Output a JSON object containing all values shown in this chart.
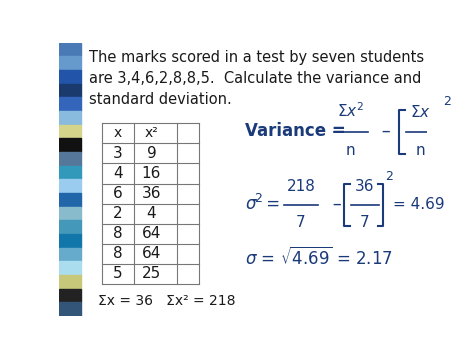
{
  "bg_color": "#ffffff",
  "sidebar_colors": [
    "#4a7ab5",
    "#6699cc",
    "#2255aa",
    "#1a3a6e",
    "#3366bb",
    "#88bbdd",
    "#d4d48a",
    "#111111",
    "#557799",
    "#3399bb",
    "#99ccee",
    "#2266aa",
    "#88bbcc",
    "#4499bb",
    "#1177aa",
    "#66aacc",
    "#aaddee",
    "#c8c87a",
    "#222222",
    "#335577"
  ],
  "title_text": "The marks scored in a test by seven students\nare 3,4,6,2,8,8,5.  Calculate the variance and\nstandard deviation.",
  "title_fontsize": 10.5,
  "table_x_vals": [
    "x",
    "3",
    "4",
    "6",
    "2",
    "8",
    "8",
    "5"
  ],
  "table_x2_vals": [
    "x²",
    "9",
    "16",
    "36",
    "4",
    "64",
    "64",
    "25"
  ],
  "sum_text": "Σx = 36   Σx² = 218",
  "text_color": "#1a1a1a",
  "formula_color": "#1a3a7a",
  "table_line_color": "#777777"
}
